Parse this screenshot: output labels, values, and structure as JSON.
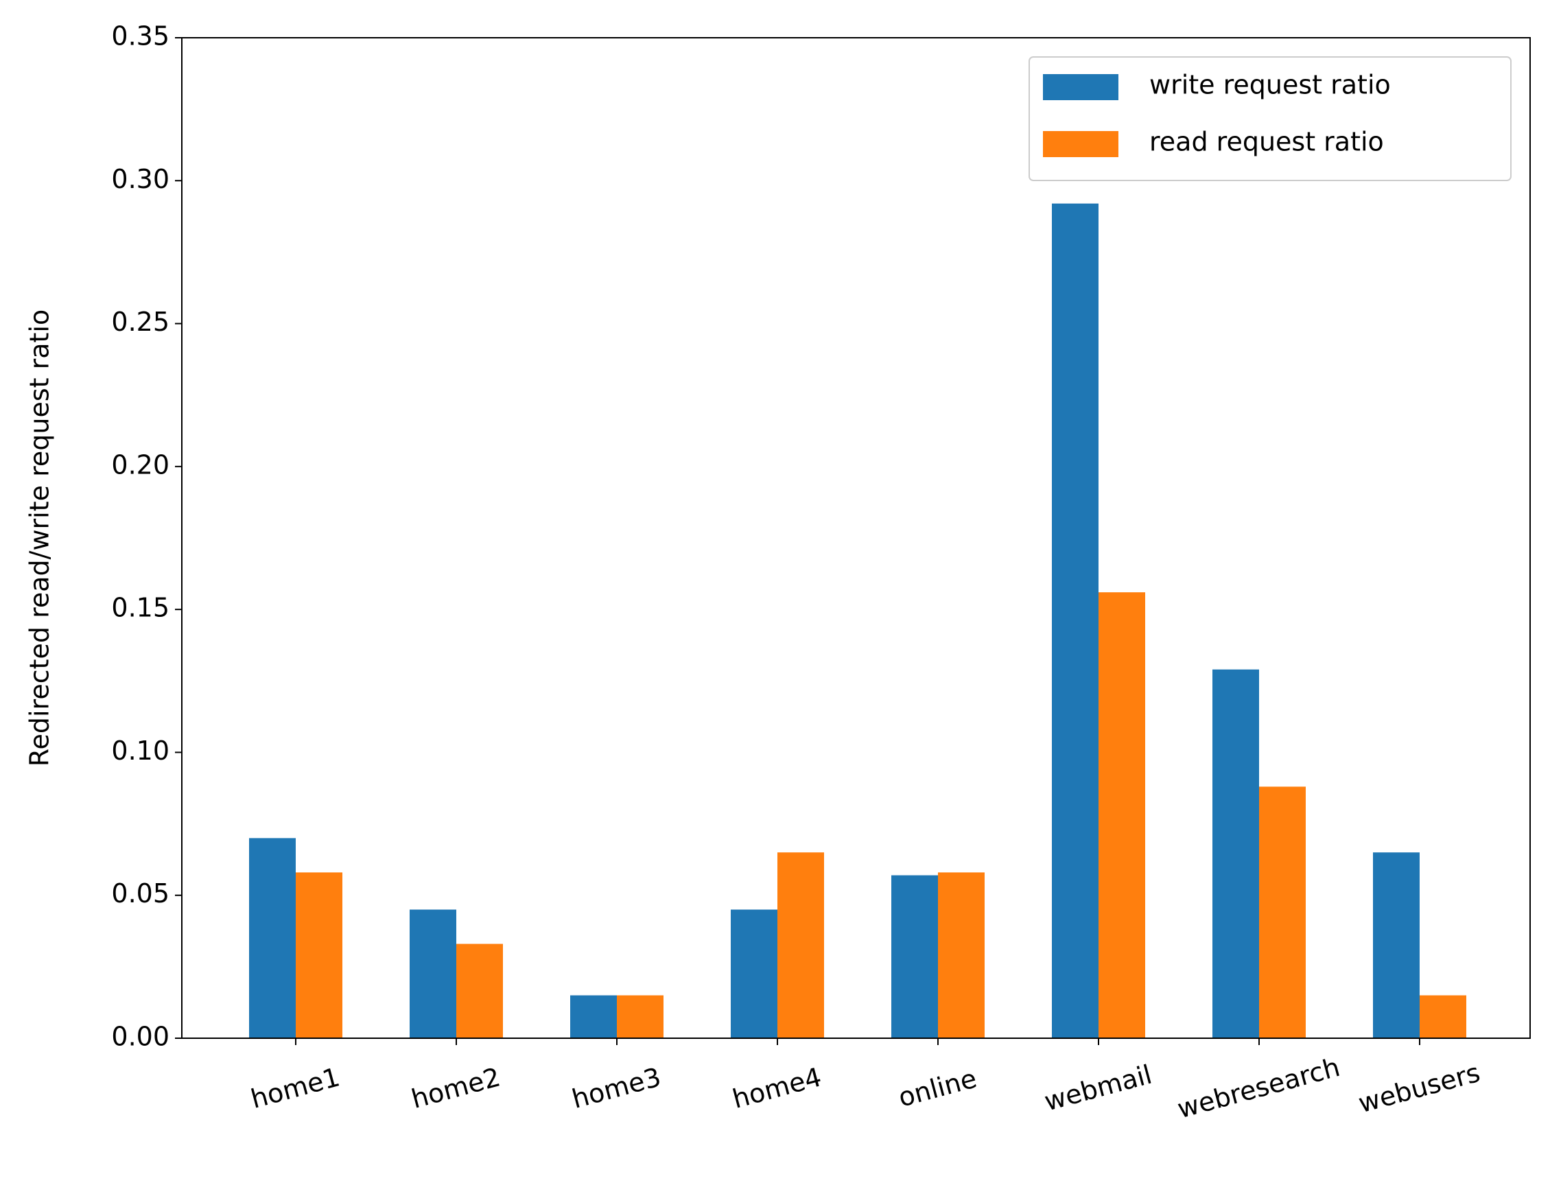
{
  "chart_data": {
    "type": "bar",
    "y_label": "Redirected read/write request ratio",
    "categories": [
      "home1",
      "home2",
      "home3",
      "home4",
      "online",
      "webmail",
      "webresearch",
      "webusers"
    ],
    "series": [
      {
        "name": "write request ratio",
        "color": "#1f77b4",
        "values": [
          0.07,
          0.045,
          0.015,
          0.045,
          0.057,
          0.292,
          0.129,
          0.065
        ]
      },
      {
        "name": "read request ratio",
        "color": "#ff7f0e",
        "values": [
          0.058,
          0.033,
          0.015,
          0.065,
          0.058,
          0.156,
          0.088,
          0.015
        ]
      }
    ],
    "ylim": [
      0,
      0.35
    ],
    "yticks": [
      {
        "value": 0,
        "label": "0.00"
      },
      {
        "value": 0.05,
        "label": "0.05"
      },
      {
        "value": 0.1,
        "label": "0.10"
      },
      {
        "value": 0.15,
        "label": "0.15"
      },
      {
        "value": 0.2,
        "label": "0.20"
      },
      {
        "value": 0.25,
        "label": "0.25"
      },
      {
        "value": 0.3,
        "label": "0.30"
      },
      {
        "value": 0.35,
        "label": "0.35"
      }
    ],
    "legend": "upper right"
  }
}
